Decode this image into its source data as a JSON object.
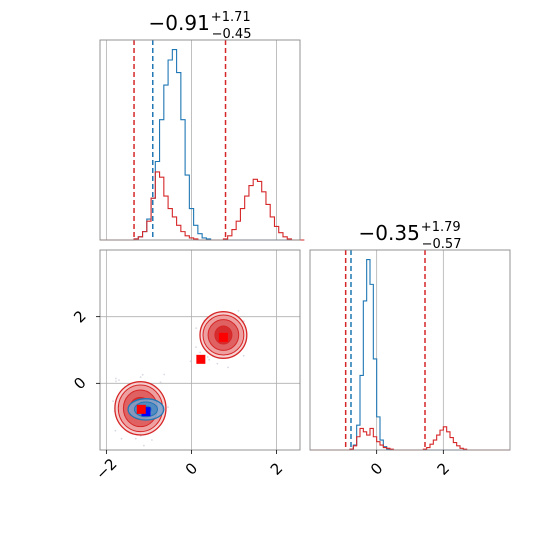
{
  "chart_data": {
    "type": "corner",
    "grid": true,
    "colors": {
      "blue": "#1f77b4",
      "red": "#d62728",
      "blue_marker": "#0000ff",
      "red_marker": "#ff0000",
      "grid": "#b0b0b0",
      "frame": "#888888"
    },
    "panels": [
      {
        "id": "hist-param1",
        "type": "step-histogram",
        "title_main": "−0.91",
        "title_sup": "+1.71",
        "title_sub": "−0.45",
        "xlim": [
          -2.15,
          2.55
        ],
        "grid_x": [
          -2,
          0,
          2
        ],
        "series": [
          {
            "name": "",
            "color": "#1f77b4",
            "x_start": -2.15,
            "bin_width": 0.1,
            "values": [
              0,
              0,
              0,
              0,
              0,
              0,
              0,
              0,
              1,
              3,
              8,
              20,
              40,
              75,
              115,
              148,
              172,
              182,
              160,
              115,
              62,
              30,
              14,
              6,
              2,
              1,
              0,
              0,
              0,
              0,
              0,
              0,
              0,
              0,
              0,
              0,
              0,
              0,
              0,
              0,
              0,
              0,
              0,
              0,
              0,
              0,
              0,
              0
            ]
          },
          {
            "name": "",
            "color": "#d62728",
            "x_start": -2.15,
            "bin_width": 0.1,
            "values": [
              0,
              0,
              0,
              0,
              0,
              0,
              0,
              0,
              1,
              3,
              8,
              18,
              40,
              65,
              60,
              42,
              30,
              22,
              14,
              8,
              4,
              2,
              1,
              0,
              0,
              0,
              0,
              0,
              0,
              1,
              4,
              10,
              18,
              30,
              42,
              52,
              58,
              56,
              46,
              34,
              22,
              13,
              7,
              3,
              1,
              0,
              0,
              0
            ]
          }
        ],
        "vlines": [
          {
            "x": -1.35,
            "color": "#d62728"
          },
          {
            "x": -0.91,
            "color": "#1f77b4"
          },
          {
            "x": 0.8,
            "color": "#d62728"
          }
        ]
      },
      {
        "id": "hist-param2",
        "type": "step-histogram",
        "title_main": "−0.35",
        "title_sup": "+1.79",
        "title_sub": "−0.57",
        "xlim": [
          -2.0,
          4.0
        ],
        "grid_x": [
          0,
          2
        ],
        "tick_labels": [
          "0",
          "2"
        ],
        "series": [
          {
            "name": "",
            "color": "#1f77b4",
            "x_start": -2.0,
            "bin_width": 0.1,
            "values": [
              0,
              0,
              0,
              0,
              0,
              0,
              0,
              0,
              0,
              0,
              0,
              0,
              1,
              6,
              30,
              90,
              180,
              230,
              200,
              110,
              40,
              12,
              4,
              1,
              0,
              0,
              0,
              0,
              0,
              0,
              0,
              0,
              0,
              0,
              0,
              0,
              0,
              0,
              0,
              0,
              0,
              0,
              0,
              0,
              0,
              0,
              0,
              0,
              0,
              0,
              0,
              0,
              0,
              0,
              0,
              0,
              0,
              0,
              0,
              0
            ]
          },
          {
            "name": "",
            "color": "#d62728",
            "x_start": -2.0,
            "bin_width": 0.1,
            "values": [
              0,
              0,
              0,
              0,
              0,
              0,
              0,
              0,
              0,
              0,
              0,
              0,
              1,
              5,
              16,
              26,
              22,
              18,
              26,
              16,
              10,
              6,
              3,
              2,
              1,
              0,
              0,
              0,
              0,
              0,
              0,
              0,
              0,
              0,
              1,
              3,
              7,
              12,
              18,
              24,
              28,
              22,
              15,
              9,
              5,
              2,
              1,
              0,
              0,
              0,
              0,
              0,
              0,
              0,
              0,
              0,
              0,
              0,
              0,
              0
            ]
          }
        ],
        "vlines": [
          {
            "x": -0.93,
            "color": "#d62728"
          },
          {
            "x": -0.77,
            "color": "#1f77b4"
          },
          {
            "x": 1.45,
            "color": "#d62728"
          }
        ]
      },
      {
        "id": "scatter-2d",
        "type": "2d-contour",
        "xlim": [
          -2.15,
          2.55
        ],
        "ylim": [
          -2.0,
          4.0
        ],
        "grid_x": [
          -2,
          0,
          2
        ],
        "grid_y": [
          0,
          2
        ],
        "x_tick_labels": [
          "−2",
          "0",
          "2"
        ],
        "y_tick_labels": [
          "0",
          "2"
        ],
        "blobs": [
          {
            "name": "",
            "color": "#d62728",
            "cx": -1.2,
            "cy": -0.75,
            "rx": [
              0.6,
              0.52,
              0.4,
              0.25
            ],
            "ry": [
              0.8,
              0.7,
              0.55,
              0.33
            ]
          },
          {
            "name": "",
            "color": "#d62728",
            "cx": 0.75,
            "cy": 1.45,
            "rx": [
              0.55,
              0.48,
              0.36,
              0.2
            ],
            "ry": [
              0.7,
              0.6,
              0.46,
              0.27
            ]
          },
          {
            "name": "",
            "color": "#1f77b4",
            "cx": -1.07,
            "cy": -0.78,
            "rx": [
              0.42,
              0.27,
              0.12
            ],
            "ry": [
              0.32,
              0.22,
              0.1
            ]
          }
        ],
        "markers": [
          {
            "x": -1.07,
            "y": -0.85,
            "color": "#0000ff"
          },
          {
            "x": -1.18,
            "y": -0.78,
            "color": "#ff0000"
          },
          {
            "x": 0.22,
            "y": 0.72,
            "color": "#ff0000"
          },
          {
            "x": 0.75,
            "y": 1.38,
            "color": "#ff0000"
          }
        ]
      }
    ]
  }
}
